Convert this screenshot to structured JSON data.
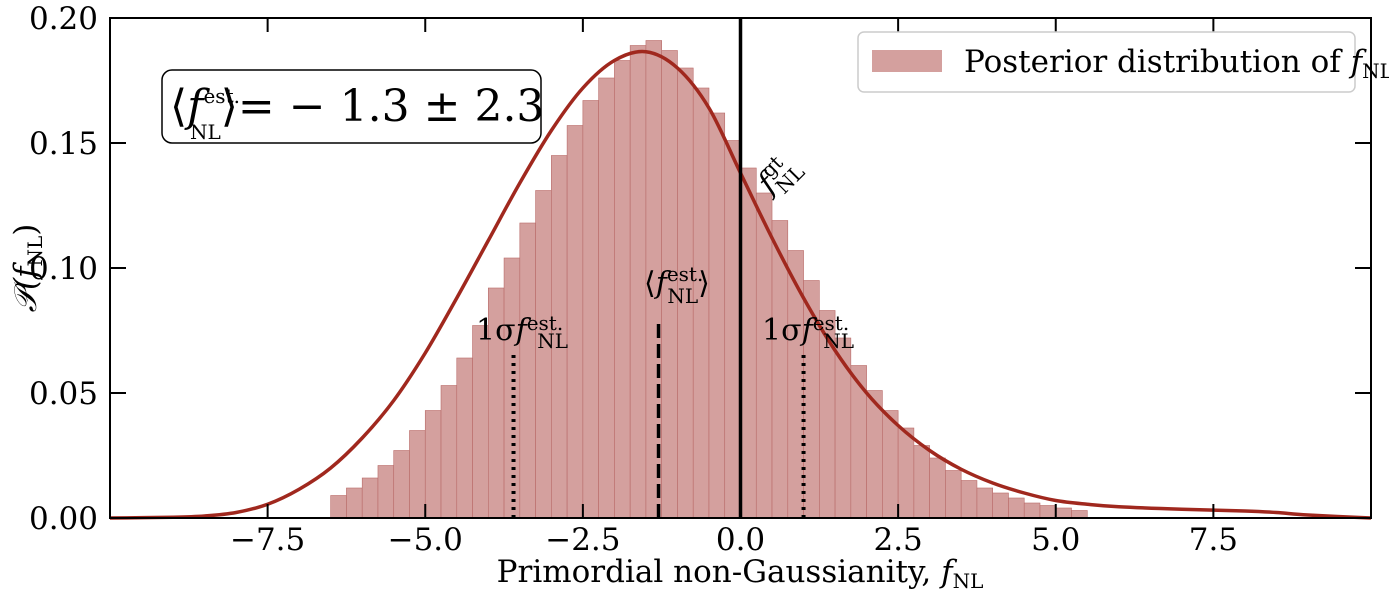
{
  "chart_data": {
    "type": "bar",
    "xlabel": "Primordial non-Gaussianity, f_NL",
    "xlabel_main": "Primordial non-Gaussianity,",
    "xlabel_var": "f",
    "xlabel_sub": "NL",
    "ylabel": "P(f_NL)",
    "ylabel_main": "𝒫(",
    "ylabel_var": "f",
    "ylabel_sub": "NL",
    "ylabel_close": ")",
    "xlim": [
      -10.0,
      10.0
    ],
    "ylim": [
      0.0,
      0.2
    ],
    "xticks": [
      -7.5,
      -5.0,
      -2.5,
      0.0,
      2.5,
      5.0,
      7.5
    ],
    "xtick_labels": [
      "−7.5",
      "−5.0",
      "−2.5",
      "0.0",
      "2.5",
      "5.0",
      "7.5"
    ],
    "yticks": [
      0.0,
      0.05,
      0.1,
      0.15,
      0.2
    ],
    "ytick_labels": [
      "0.00",
      "0.05",
      "0.10",
      "0.15",
      "0.20"
    ],
    "grid": false,
    "legend": {
      "placement": "top-right",
      "entries": [
        {
          "prefix": "Posterior distribution of",
          "var": "f",
          "sub": "NL",
          "color": "#d4a09e"
        }
      ]
    },
    "histogram": {
      "bin_width": 0.25,
      "bin_start": -6.5,
      "fill_color": "#d4a09e",
      "edge_color": "#b86a68",
      "values": [
        0.009,
        0.012,
        0.016,
        0.021,
        0.027,
        0.035,
        0.043,
        0.053,
        0.064,
        0.077,
        0.092,
        0.104,
        0.118,
        0.131,
        0.145,
        0.157,
        0.167,
        0.176,
        0.183,
        0.189,
        0.191,
        0.187,
        0.18,
        0.172,
        0.162,
        0.151,
        0.14,
        0.13,
        0.119,
        0.107,
        0.095,
        0.083,
        0.072,
        0.061,
        0.051,
        0.043,
        0.036,
        0.029,
        0.024,
        0.019,
        0.015,
        0.012,
        0.01,
        0.008,
        0.006,
        0.005,
        0.004,
        0.003
      ]
    },
    "kde": {
      "name": "KDE",
      "color": "#a0281e",
      "x": [
        -10.0,
        -9.0,
        -8.5,
        -8.0,
        -7.5,
        -7.0,
        -6.5,
        -6.0,
        -5.5,
        -5.0,
        -4.5,
        -4.0,
        -3.5,
        -3.0,
        -2.5,
        -2.0,
        -1.5,
        -1.0,
        -0.5,
        0.0,
        0.5,
        1.0,
        1.5,
        2.0,
        2.5,
        3.0,
        3.5,
        4.0,
        4.5,
        5.0,
        5.5,
        6.0,
        7.0,
        8.0,
        8.5,
        9.0,
        10.0
      ],
      "y": [
        0.0,
        0.0003,
        0.0008,
        0.0022,
        0.0055,
        0.0115,
        0.02,
        0.032,
        0.047,
        0.066,
        0.088,
        0.111,
        0.134,
        0.155,
        0.172,
        0.183,
        0.1865,
        0.18,
        0.164,
        0.138,
        0.112,
        0.088,
        0.067,
        0.05,
        0.037,
        0.027,
        0.0195,
        0.014,
        0.01,
        0.007,
        0.0055,
        0.0045,
        0.0035,
        0.0028,
        0.0022,
        0.0012,
        0.0
      ]
    },
    "vertical_lines": [
      {
        "name": "ground-truth",
        "x": 0.0,
        "ymax": 0.2,
        "style": "solid"
      },
      {
        "name": "mean",
        "x": -1.3,
        "ymax": 0.08,
        "style": "dashed"
      },
      {
        "name": "sigma-low",
        "x": -3.6,
        "ymax": 0.067,
        "style": "dotted"
      },
      {
        "name": "sigma-high",
        "x": 1.0,
        "ymax": 0.067,
        "style": "dotted"
      }
    ],
    "annotations": {
      "box": {
        "lhs_var": "f",
        "lhs_sup": "est.",
        "lhs_sub": "NL",
        "rhs": "= − 1.3 ± 2.3"
      },
      "truth": {
        "var": "f",
        "sup": "gt",
        "sub": "NL"
      },
      "mean": {
        "var": "f",
        "sup": "est.",
        "sub": "NL"
      },
      "sigma_low": {
        "prefix": "1σ",
        "var": "f",
        "sup": "est.",
        "sub": "NL"
      },
      "sigma_high": {
        "prefix": "1σ",
        "var": "f",
        "sup": "est.",
        "sub": "NL"
      }
    }
  }
}
